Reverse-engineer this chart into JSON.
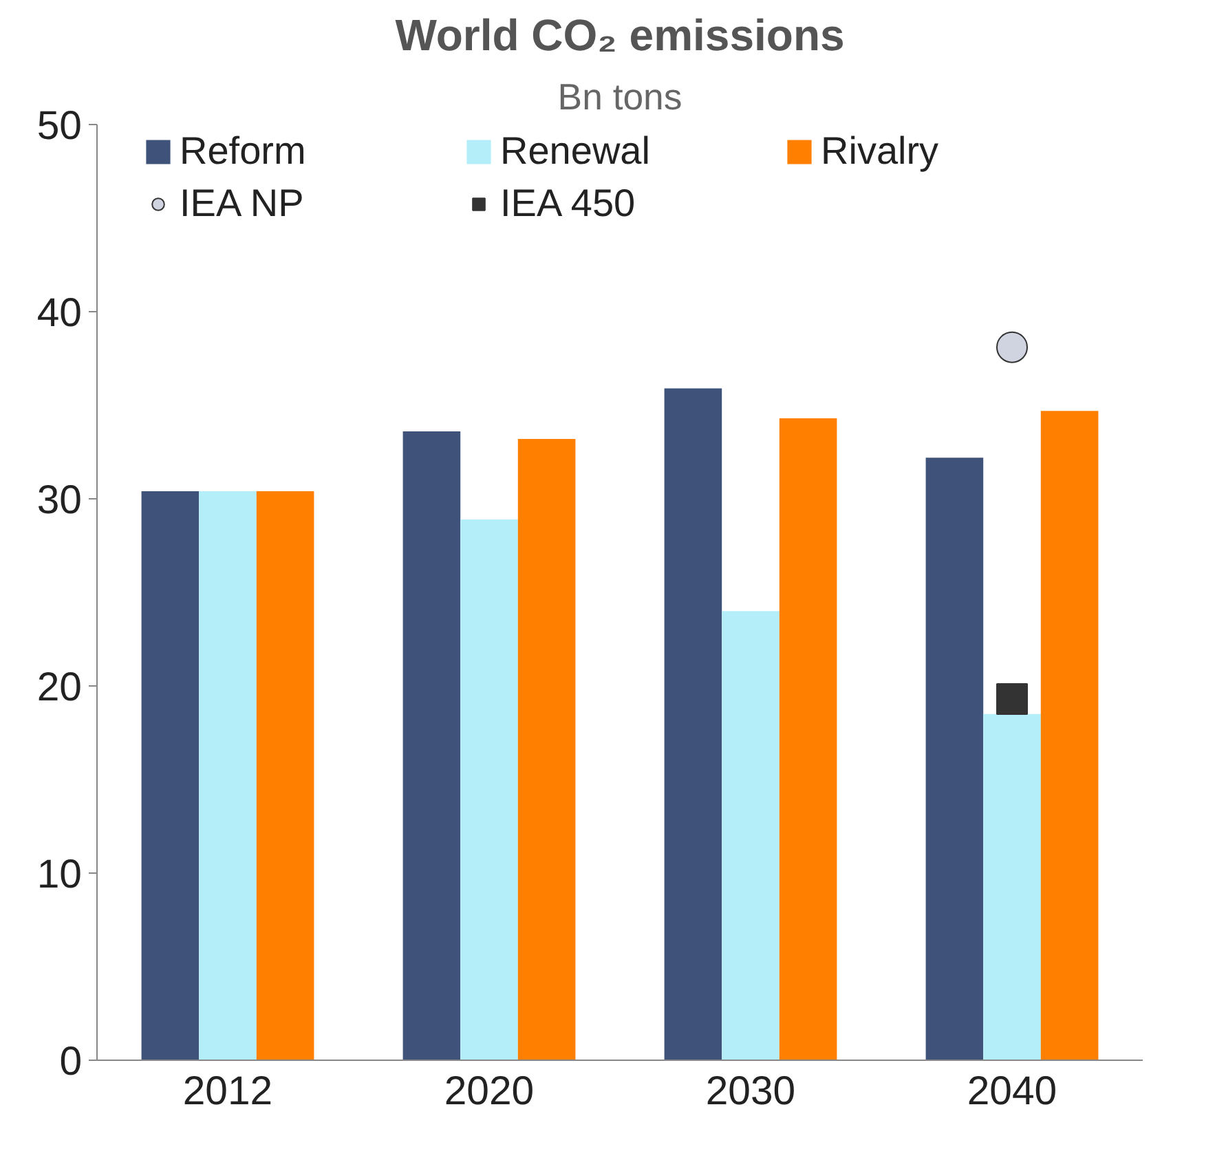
{
  "chart_data": {
    "type": "bar",
    "title": "World CO₂ emissions",
    "subtitle": "Bn tons",
    "categories": [
      "2012",
      "2020",
      "2030",
      "2040"
    ],
    "series": [
      {
        "name": "Reform",
        "color": "#3f527a",
        "values": [
          30.4,
          33.6,
          35.9,
          32.2
        ]
      },
      {
        "name": "Renewal",
        "color": "#b4eef8",
        "values": [
          30.4,
          28.9,
          24.0,
          18.5
        ]
      },
      {
        "name": "Rivalry",
        "color": "#ff7f00",
        "values": [
          30.4,
          33.2,
          34.3,
          34.7
        ]
      },
      {
        "name": "IEA NP",
        "type": "scatter",
        "marker": "circle",
        "color": "#d0d3e0",
        "values": [
          null,
          null,
          null,
          38.1
        ]
      },
      {
        "name": "IEA 450",
        "type": "scatter",
        "marker": "square",
        "color": "#333333",
        "values": [
          null,
          null,
          null,
          19.3
        ]
      }
    ],
    "ylim": [
      0,
      50
    ],
    "yticks": [
      0,
      10,
      20,
      30,
      40,
      50
    ],
    "grid": false,
    "legend": "top"
  }
}
